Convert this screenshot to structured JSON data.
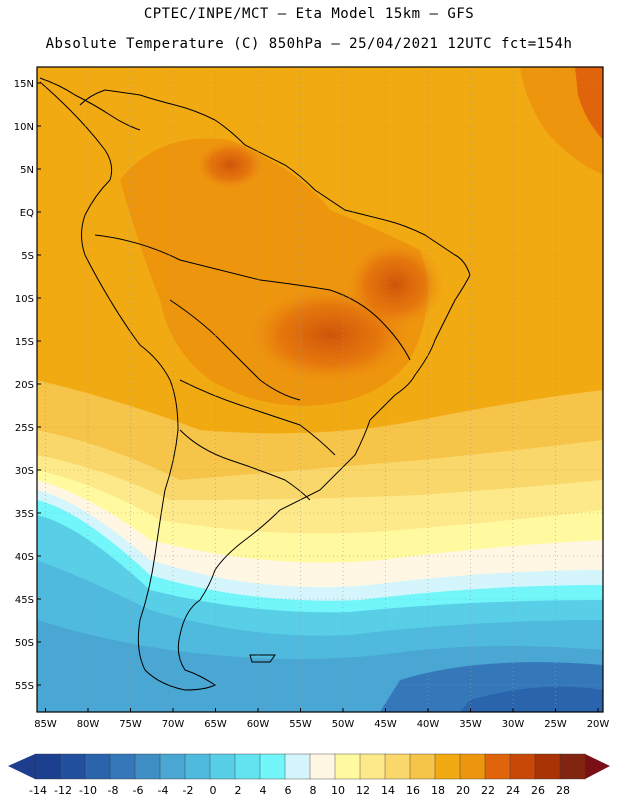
{
  "header": {
    "line1": "CPTEC/INPE/MCT –  Eta Model 15km – GFS",
    "line2": "Absolute Temperature (C) 850hPa – 25/04/2021 12UTC fct=154h"
  },
  "map": {
    "lat_labels": [
      "15N",
      "10N",
      "5N",
      "EQ",
      "5S",
      "10S",
      "15S",
      "20S",
      "25S",
      "30S",
      "35S",
      "40S",
      "45S",
      "50S",
      "55S"
    ],
    "lon_labels": [
      "85W",
      "80W",
      "75W",
      "70W",
      "65W",
      "60W",
      "55W",
      "50W",
      "45W",
      "40W",
      "35W",
      "30W",
      "25W",
      "20W"
    ]
  },
  "colorbar": {
    "labels": [
      "-14",
      "-12",
      "-10",
      "-8",
      "-6",
      "-4",
      "-2",
      "0",
      "2",
      "4",
      "6",
      "8",
      "10",
      "12",
      "14",
      "16",
      "18",
      "20",
      "22",
      "24",
      "26",
      "28"
    ],
    "colors": [
      "#1d3f8f",
      "#22509e",
      "#2a64ad",
      "#3478b9",
      "#3f8ec4",
      "#4aa6d2",
      "#4fbadd",
      "#58cfe6",
      "#63e3ef",
      "#73f6f9",
      "#d3f5fb",
      "#fff6e3",
      "#fffaa0",
      "#fde98a",
      "#f9d76a",
      "#f5c448",
      "#f2aa12",
      "#ee950e",
      "#e0640c",
      "#c84808",
      "#a93206",
      "#812510"
    ],
    "min_color": "#1e3d8c",
    "max_color": "#7a0f18"
  }
}
